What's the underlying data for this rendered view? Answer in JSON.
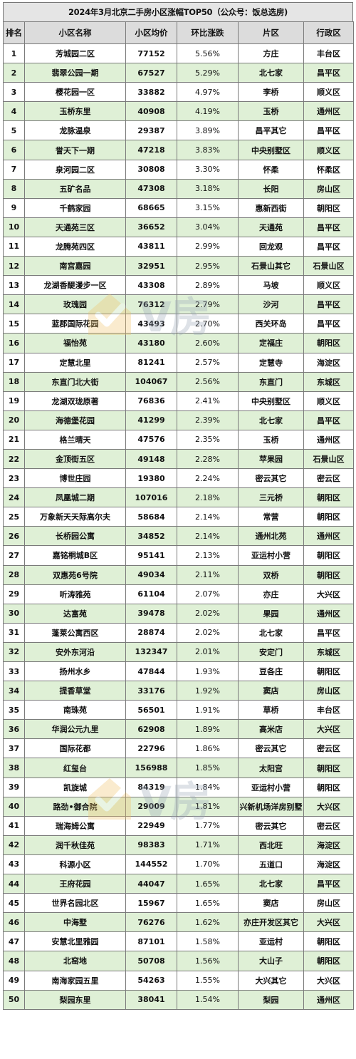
{
  "title": "2024年3月北京二手房小区涨幅TOP50（公众号：饭总选房)",
  "columns": [
    "排名",
    "小区名称",
    "小区均价",
    "环比涨跌",
    "片区",
    "行政区"
  ],
  "watermark_text": "V房",
  "rows": [
    {
      "rank": "1",
      "name": "芳城园二区",
      "price": "77152",
      "change": "5.56%",
      "area": "方庄",
      "district": "丰台区"
    },
    {
      "rank": "2",
      "name": "翡翠公园一期",
      "price": "67527",
      "change": "5.29%",
      "area": "北七家",
      "district": "昌平区"
    },
    {
      "rank": "3",
      "name": "樱花园一区",
      "price": "33882",
      "change": "4.97%",
      "area": "李桥",
      "district": "顺义区"
    },
    {
      "rank": "4",
      "name": "玉桥东里",
      "price": "40908",
      "change": "4.19%",
      "area": "玉桥",
      "district": "通州区"
    },
    {
      "rank": "5",
      "name": "龙脉温泉",
      "price": "29387",
      "change": "3.89%",
      "area": "昌平其它",
      "district": "昌平区"
    },
    {
      "rank": "6",
      "name": "誉天下一期",
      "price": "47218",
      "change": "3.83%",
      "area": "中央别墅区",
      "district": "顺义区"
    },
    {
      "rank": "7",
      "name": "泉河园二区",
      "price": "30808",
      "change": "3.30%",
      "area": "怀柔",
      "district": "怀柔区"
    },
    {
      "rank": "8",
      "name": "五矿名品",
      "price": "47308",
      "change": "3.18%",
      "area": "长阳",
      "district": "房山区"
    },
    {
      "rank": "9",
      "name": "千鹤家园",
      "price": "68665",
      "change": "3.15%",
      "area": "惠新西街",
      "district": "朝阳区"
    },
    {
      "rank": "10",
      "name": "天通苑三区",
      "price": "36652",
      "change": "3.04%",
      "area": "天通苑",
      "district": "昌平区"
    },
    {
      "rank": "11",
      "name": "龙腾苑四区",
      "price": "43811",
      "change": "2.99%",
      "area": "回龙观",
      "district": "昌平区"
    },
    {
      "rank": "12",
      "name": "南宫嘉园",
      "price": "32951",
      "change": "2.95%",
      "area": "石景山其它",
      "district": "石景山区"
    },
    {
      "rank": "13",
      "name": "龙湖香醍漫步一区",
      "price": "43308",
      "change": "2.89%",
      "area": "马坡",
      "district": "顺义区"
    },
    {
      "rank": "14",
      "name": "玫瑰园",
      "price": "76312",
      "change": "2.79%",
      "area": "沙河",
      "district": "昌平区"
    },
    {
      "rank": "15",
      "name": "蓝郡国际花园",
      "price": "43493",
      "change": "2.70%",
      "area": "西关环岛",
      "district": "昌平区"
    },
    {
      "rank": "16",
      "name": "福怡苑",
      "price": "43180",
      "change": "2.60%",
      "area": "定福庄",
      "district": "朝阳区"
    },
    {
      "rank": "17",
      "name": "定慧北里",
      "price": "81241",
      "change": "2.57%",
      "area": "定慧寺",
      "district": "海淀区"
    },
    {
      "rank": "18",
      "name": "东直门北大街",
      "price": "104067",
      "change": "2.56%",
      "area": "东直门",
      "district": "东城区"
    },
    {
      "rank": "19",
      "name": "龙湖双珑原著",
      "price": "76836",
      "change": "2.41%",
      "area": "中央别墅区",
      "district": "顺义区"
    },
    {
      "rank": "20",
      "name": "海德堡花园",
      "price": "41299",
      "change": "2.39%",
      "area": "北七家",
      "district": "昌平区"
    },
    {
      "rank": "21",
      "name": "格兰晴天",
      "price": "47576",
      "change": "2.35%",
      "area": "玉桥",
      "district": "通州区"
    },
    {
      "rank": "22",
      "name": "金顶街五区",
      "price": "49148",
      "change": "2.28%",
      "area": "苹果园",
      "district": "石景山区"
    },
    {
      "rank": "23",
      "name": "博世庄园",
      "price": "19380",
      "change": "2.24%",
      "area": "密云其它",
      "district": "密云区"
    },
    {
      "rank": "24",
      "name": "凤凰城二期",
      "price": "107016",
      "change": "2.18%",
      "area": "三元桥",
      "district": "朝阳区"
    },
    {
      "rank": "25",
      "name": "万象新天天际高尔夫",
      "price": "58684",
      "change": "2.14%",
      "area": "常营",
      "district": "朝阳区"
    },
    {
      "rank": "26",
      "name": "长桥园公寓",
      "price": "34852",
      "change": "2.14%",
      "area": "通州北苑",
      "district": "通州区"
    },
    {
      "rank": "27",
      "name": "嘉铭桐城B区",
      "price": "95141",
      "change": "2.13%",
      "area": "亚运村小营",
      "district": "朝阳区"
    },
    {
      "rank": "28",
      "name": "双惠苑6号院",
      "price": "49034",
      "change": "2.11%",
      "area": "双桥",
      "district": "朝阳区"
    },
    {
      "rank": "29",
      "name": "听涛雅苑",
      "price": "61104",
      "change": "2.07%",
      "area": "亦庄",
      "district": "大兴区"
    },
    {
      "rank": "30",
      "name": "达富苑",
      "price": "39478",
      "change": "2.02%",
      "area": "果园",
      "district": "通州区"
    },
    {
      "rank": "31",
      "name": "蓬莱公寓西区",
      "price": "28874",
      "change": "2.02%",
      "area": "北七家",
      "district": "昌平区"
    },
    {
      "rank": "32",
      "name": "安外东河沿",
      "price": "132347",
      "change": "2.01%",
      "area": "安定门",
      "district": "东城区"
    },
    {
      "rank": "33",
      "name": "扬州水乡",
      "price": "47844",
      "change": "1.93%",
      "area": "豆各庄",
      "district": "朝阳区"
    },
    {
      "rank": "34",
      "name": "提香草堂",
      "price": "33176",
      "change": "1.92%",
      "area": "窦店",
      "district": "房山区"
    },
    {
      "rank": "35",
      "name": "南珠苑",
      "price": "56501",
      "change": "1.91%",
      "area": "草桥",
      "district": "丰台区"
    },
    {
      "rank": "36",
      "name": "华润公元九里",
      "price": "62908",
      "change": "1.89%",
      "area": "高米店",
      "district": "大兴区"
    },
    {
      "rank": "37",
      "name": "国际花都",
      "price": "22796",
      "change": "1.86%",
      "area": "密云其它",
      "district": "密云区"
    },
    {
      "rank": "38",
      "name": "红玺台",
      "price": "156988",
      "change": "1.85%",
      "area": "太阳宫",
      "district": "朝阳区"
    },
    {
      "rank": "39",
      "name": "凯旋城",
      "price": "84319",
      "change": "1.84%",
      "area": "亚运村小营",
      "district": "朝阳区"
    },
    {
      "rank": "40",
      "name": "路劲•御合院",
      "price": "29009",
      "change": "1.81%",
      "area": "兴新机场洋房别墅",
      "district": "大兴区"
    },
    {
      "rank": "41",
      "name": "瑞海姆公寓",
      "price": "22949",
      "change": "1.77%",
      "area": "密云其它",
      "district": "密云区"
    },
    {
      "rank": "42",
      "name": "润千秋佳苑",
      "price": "98383",
      "change": "1.71%",
      "area": "西北旺",
      "district": "海淀区"
    },
    {
      "rank": "43",
      "name": "科源小区",
      "price": "144552",
      "change": "1.70%",
      "area": "五道口",
      "district": "海淀区"
    },
    {
      "rank": "44",
      "name": "王府花园",
      "price": "44047",
      "change": "1.65%",
      "area": "北七家",
      "district": "昌平区"
    },
    {
      "rank": "45",
      "name": "世界名园北区",
      "price": "15967",
      "change": "1.65%",
      "area": "窦店",
      "district": "房山区"
    },
    {
      "rank": "46",
      "name": "中海墅",
      "price": "76276",
      "change": "1.62%",
      "area": "亦庄开发区其它",
      "district": "大兴区"
    },
    {
      "rank": "47",
      "name": "安慧北里雅园",
      "price": "87101",
      "change": "1.58%",
      "area": "亚运村",
      "district": "朝阳区"
    },
    {
      "rank": "48",
      "name": "北窑地",
      "price": "50708",
      "change": "1.56%",
      "area": "大山子",
      "district": "朝阳区"
    },
    {
      "rank": "49",
      "name": "南海家园五里",
      "price": "54263",
      "change": "1.55%",
      "area": "大兴其它",
      "district": "大兴区"
    },
    {
      "rank": "50",
      "name": "梨园东里",
      "price": "38041",
      "change": "1.54%",
      "area": "梨园",
      "district": "通州区"
    }
  ]
}
